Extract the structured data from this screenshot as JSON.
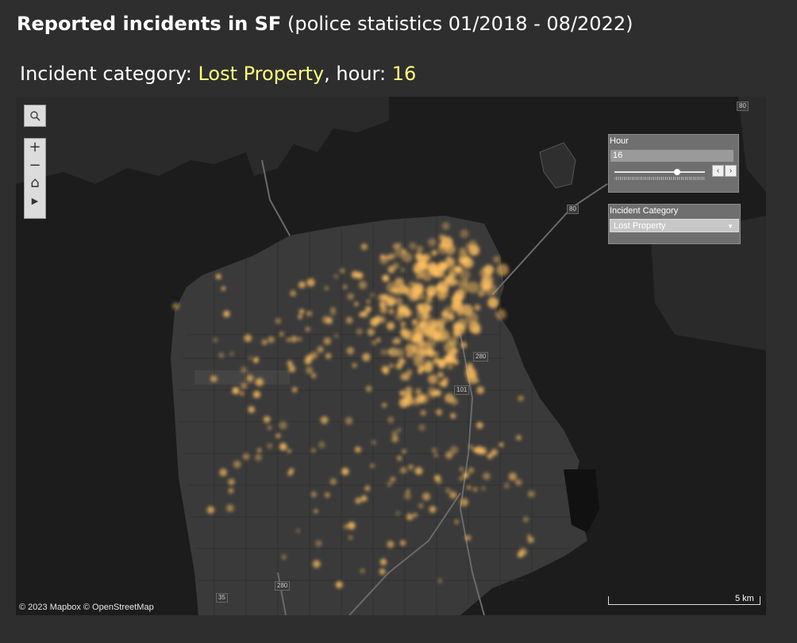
{
  "header": {
    "title_bold": "Reported incidents in SF",
    "title_rest": "(police statistics 01/2018 - 08/2022)",
    "sub_prefix": "Incident category: ",
    "sub_category": "Lost Property",
    "sub_mid": ", hour: ",
    "sub_hour": "16"
  },
  "map": {
    "point_color": "#ffc060",
    "water_color": "#1c1c1c",
    "land_color": "#3b3b3b",
    "highway_labels": [
      "80",
      "80",
      "280",
      "101",
      "280",
      "35"
    ],
    "attribution": "© 2023 Mapbox  © OpenStreetMap",
    "scale_label": "5 km",
    "incident_level_hint": "dense in downtown / SoMa"
  },
  "tools": {
    "search_icon": "magnifier-icon",
    "zoom_in": "+",
    "zoom_out": "−",
    "home_icon": "⌂",
    "play_icon": "▶"
  },
  "hour_filter": {
    "label": "Hour",
    "value": "16",
    "min": 0,
    "max": 23,
    "current": 16,
    "prev_icon": "‹",
    "next_icon": "›"
  },
  "category_filter": {
    "label": "Incident Category",
    "value": "Lost Property",
    "caret": "▼"
  }
}
